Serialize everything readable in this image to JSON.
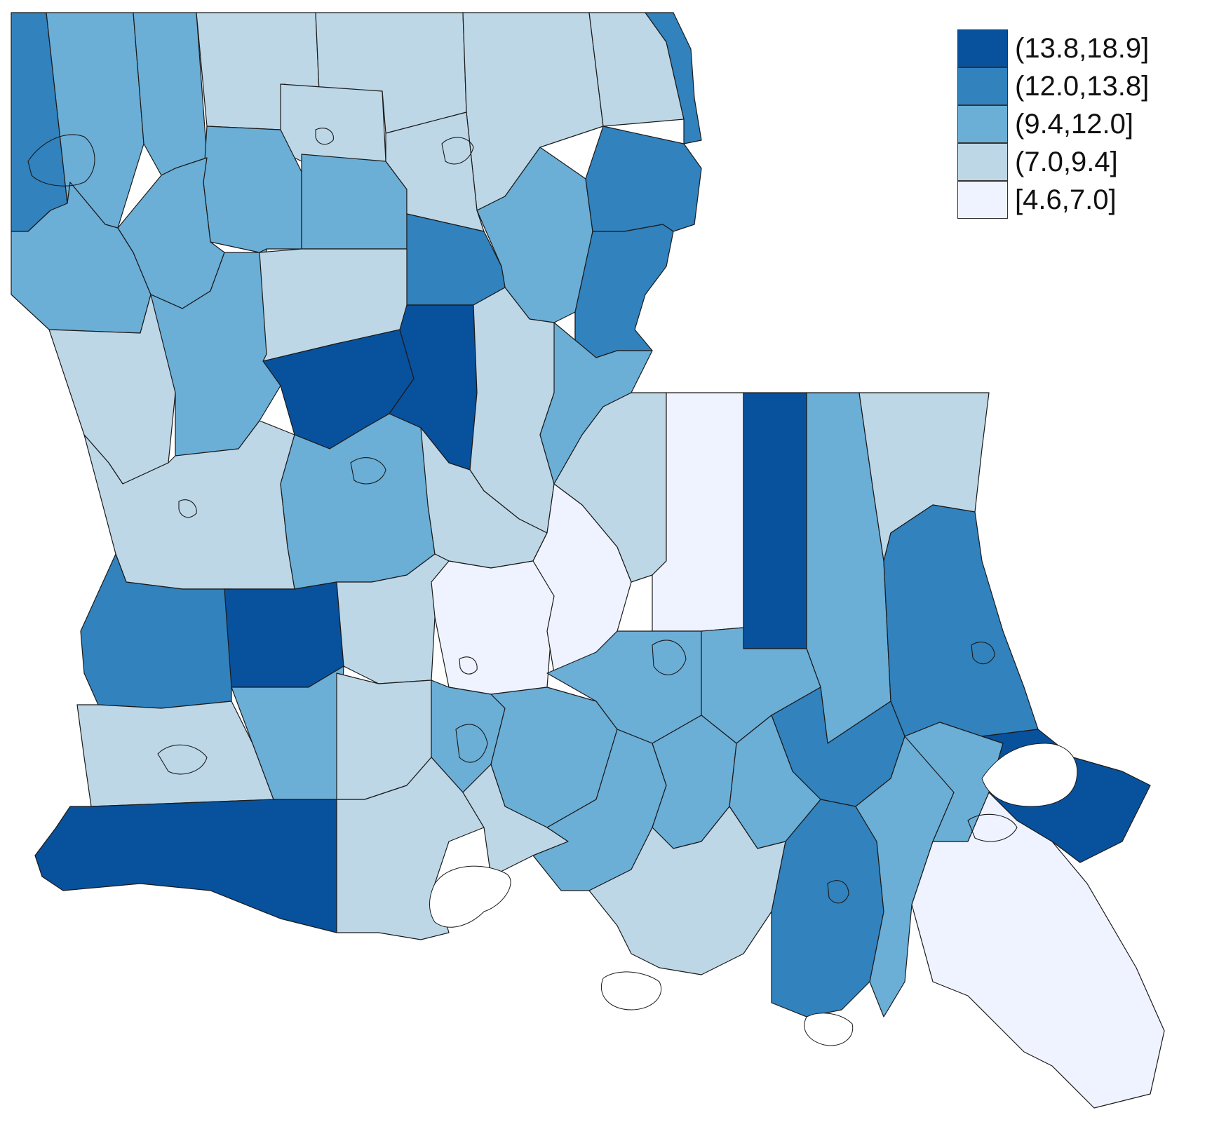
{
  "legend": {
    "items": [
      {
        "label": "(13.8,18.9]",
        "color": "#08519c"
      },
      {
        "label": "(12.0,13.8]",
        "color": "#3182bd"
      },
      {
        "label": "(9.4,12.0]",
        "color": "#6baed6"
      },
      {
        "label": "(7.0,9.4]",
        "color": "#bdd7e7"
      },
      {
        "label": "[4.6,7.0]",
        "color": "#eff3ff"
      }
    ]
  },
  "map": {
    "region": "Louisiana parishes",
    "class_colors": [
      "#08519c",
      "#3182bd",
      "#6baed6",
      "#bdd7e7",
      "#eff3ff"
    ]
  }
}
